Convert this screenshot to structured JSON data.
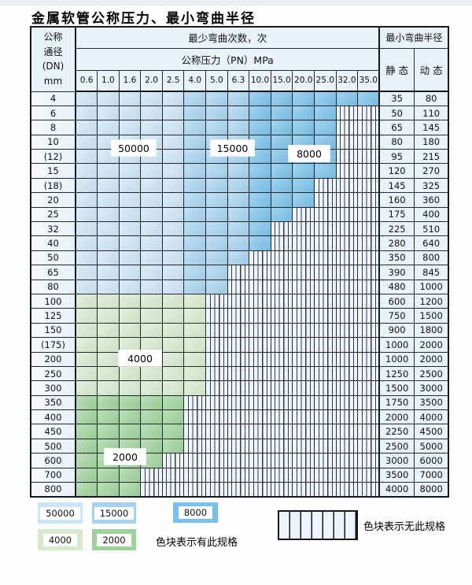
{
  "title": "金属软管公称压力、最小弯曲半径",
  "table": {
    "header": {
      "dn_lines": [
        "公称",
        "通径",
        "(DN)",
        "mm"
      ],
      "cycles_title": "最少弯曲次数，次",
      "pressure_title": "公称压力（PN）MPa",
      "pressures": [
        "0.6",
        "1.0",
        "1.6",
        "2.0",
        "2.5",
        "4.0",
        "5.0",
        "6.3",
        "10.0",
        "15.0",
        "20.0",
        "25.0",
        "32.0",
        "35.0"
      ],
      "radius_title": "最小弯曲半径",
      "static_label": "静 态",
      "dynamic_label": "动 态"
    },
    "rows": [
      {
        "dn": "4",
        "spec_cols": 14,
        "static": "35",
        "dynamic": "80",
        "group": "blue"
      },
      {
        "dn": "6",
        "spec_cols": 12,
        "static": "50",
        "dynamic": "110",
        "group": "blue"
      },
      {
        "dn": "8",
        "spec_cols": 12,
        "static": "65",
        "dynamic": "145",
        "group": "blue"
      },
      {
        "dn": "10",
        "spec_cols": 12,
        "static": "80",
        "dynamic": "180",
        "group": "blue"
      },
      {
        "dn": "(12)",
        "spec_cols": 12,
        "static": "95",
        "dynamic": "215",
        "group": "blue"
      },
      {
        "dn": "15",
        "spec_cols": 12,
        "static": "120",
        "dynamic": "270",
        "group": "blue"
      },
      {
        "dn": "(18)",
        "spec_cols": 11,
        "static": "145",
        "dynamic": "325",
        "group": "blue"
      },
      {
        "dn": "20",
        "spec_cols": 11,
        "static": "160",
        "dynamic": "360",
        "group": "blue"
      },
      {
        "dn": "25",
        "spec_cols": 10,
        "static": "175",
        "dynamic": "400",
        "group": "blue"
      },
      {
        "dn": "32",
        "spec_cols": 9,
        "static": "225",
        "dynamic": "510",
        "group": "blue"
      },
      {
        "dn": "40",
        "spec_cols": 9,
        "static": "280",
        "dynamic": "640",
        "group": "blue"
      },
      {
        "dn": "50",
        "spec_cols": 8,
        "static": "350",
        "dynamic": "800",
        "group": "blue"
      },
      {
        "dn": "65",
        "spec_cols": 7,
        "static": "390",
        "dynamic": "845",
        "group": "blue"
      },
      {
        "dn": "80",
        "spec_cols": 7,
        "static": "480",
        "dynamic": "1000",
        "group": "blue"
      },
      {
        "dn": "100",
        "spec_cols": 6,
        "static": "600",
        "dynamic": "1200",
        "group": "green4000"
      },
      {
        "dn": "125",
        "spec_cols": 6,
        "static": "750",
        "dynamic": "1500",
        "group": "green4000"
      },
      {
        "dn": "150",
        "spec_cols": 6,
        "static": "900",
        "dynamic": "1800",
        "group": "green4000"
      },
      {
        "dn": "(175)",
        "spec_cols": 6,
        "static": "1000",
        "dynamic": "2000",
        "group": "green4000"
      },
      {
        "dn": "200",
        "spec_cols": 6,
        "static": "1000",
        "dynamic": "2000",
        "group": "green4000"
      },
      {
        "dn": "250",
        "spec_cols": 6,
        "static": "1250",
        "dynamic": "2500",
        "group": "green4000"
      },
      {
        "dn": "300",
        "spec_cols": 6,
        "static": "1500",
        "dynamic": "3000",
        "group": "green4000"
      },
      {
        "dn": "350",
        "spec_cols": 5,
        "static": "1750",
        "dynamic": "3500",
        "group": "green2000"
      },
      {
        "dn": "400",
        "spec_cols": 5,
        "static": "2000",
        "dynamic": "4000",
        "group": "green2000"
      },
      {
        "dn": "450",
        "spec_cols": 5,
        "static": "2250",
        "dynamic": "4500",
        "group": "green2000"
      },
      {
        "dn": "500",
        "spec_cols": 5,
        "static": "2500",
        "dynamic": "5000",
        "group": "green2000"
      },
      {
        "dn": "600",
        "spec_cols": 4,
        "static": "3000",
        "dynamic": "6000",
        "group": "green2000"
      },
      {
        "dn": "700",
        "spec_cols": 3,
        "static": "3500",
        "dynamic": "7000",
        "group": "green2000"
      },
      {
        "dn": "800",
        "spec_cols": 3,
        "static": "4000",
        "dynamic": "8000",
        "group": "green2000"
      }
    ],
    "cycle_regions": {
      "blue_by_pressure_column": {
        "50000": [
          "0.6",
          "1.0",
          "1.6",
          "2.0",
          "2.5"
        ],
        "15000": [
          "4.0",
          "5.0",
          "6.3"
        ],
        "8000": [
          "10.0",
          "15.0",
          "20.0",
          "25.0",
          "32.0",
          "35.0"
        ]
      },
      "green_by_dn_row": {
        "4000": "100–300",
        "2000": "350–800"
      }
    }
  },
  "region_labels": {
    "r50000": "50000",
    "r15000": "15000",
    "r8000": "8000",
    "r4000": "4000",
    "r2000": "2000"
  },
  "legend": {
    "sw50000": "50000",
    "sw15000": "15000",
    "sw8000": "8000",
    "sw4000": "4000",
    "sw2000": "2000",
    "has_spec_text": "色块表示有此规格",
    "no_spec_text": "色块表示无此规格"
  },
  "colors": {
    "c50000": "#cbe4f6",
    "c15000": "#a6d2ef",
    "c8000": "#79c1e9",
    "c4000": "#d6e9cd",
    "c2000": "#9ed29b",
    "cell_bg": "#e9f1f9",
    "nospec_bg": "#eef4fb",
    "grid_border": "#23282d"
  }
}
